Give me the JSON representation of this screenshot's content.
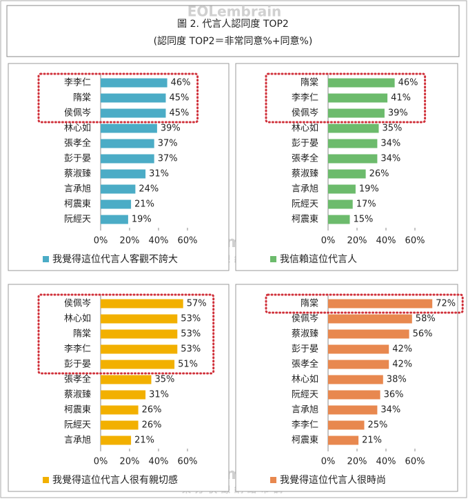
{
  "title": "圖 2. 代言人認同度 TOP2",
  "subtitle": "(認同度 TOP2＝非常同意%+同意%)",
  "watermark": {
    "brand": "EOLembrain",
    "sub": "東方快線網絡市調"
  },
  "chart_data": [
    {
      "type": "bar",
      "orientation": "horizontal",
      "categories": [
        "李李仁",
        "隋棠",
        "侯佩岑",
        "林心如",
        "張孝全",
        "彭于晏",
        "蔡淑臻",
        "言承旭",
        "柯震東",
        "阮經天"
      ],
      "series": [
        {
          "name": "我覺得這位代言人客觀不誇大",
          "color": "#4bacc6",
          "values": [
            46,
            45,
            45,
            39,
            37,
            37,
            31,
            24,
            21,
            19
          ],
          "value_labels": [
            "46%",
            "45%",
            "45%",
            "39%",
            "37%",
            "37%",
            "31%",
            "24%",
            "21%",
            "19%"
          ]
        }
      ],
      "xlim": [
        0,
        60
      ],
      "xticks": [
        {
          "value": 0,
          "label": "0%"
        },
        {
          "value": 20,
          "label": "20%"
        },
        {
          "value": 40,
          "label": "40%"
        },
        {
          "value": 60,
          "label": "60%"
        }
      ],
      "highlight_top": 3,
      "legend": "bottom"
    },
    {
      "type": "bar",
      "orientation": "horizontal",
      "categories": [
        "隋棠",
        "李李仁",
        "侯佩岑",
        "林心如",
        "彭于晏",
        "張孝全",
        "蔡淑臻",
        "言承旭",
        "阮經天",
        "柯震東"
      ],
      "series": [
        {
          "name": "我信賴這位代言人",
          "color": "#6cbb6c",
          "values": [
            46,
            41,
            39,
            35,
            34,
            34,
            26,
            19,
            17,
            15
          ],
          "value_labels": [
            "46%",
            "41%",
            "39%",
            "35%",
            "34%",
            "34%",
            "26%",
            "19%",
            "17%",
            "15%"
          ]
        }
      ],
      "xlim": [
        0,
        60
      ],
      "xticks": [
        {
          "value": 0,
          "label": "0%"
        },
        {
          "value": 20,
          "label": "20%"
        },
        {
          "value": 40,
          "label": "40%"
        },
        {
          "value": 60,
          "label": "60%"
        }
      ],
      "highlight_top": 3,
      "legend": "bottom"
    },
    {
      "type": "bar",
      "orientation": "horizontal",
      "categories": [
        "侯佩岑",
        "林心如",
        "隋棠",
        "李李仁",
        "彭于晏",
        "張孝全",
        "蔡淑臻",
        "柯震東",
        "阮經天",
        "言承旭"
      ],
      "series": [
        {
          "name": "我覺得這位代言人很有親切感",
          "color": "#f2b000",
          "values": [
            57,
            53,
            53,
            53,
            51,
            35,
            31,
            26,
            26,
            21
          ],
          "value_labels": [
            "57%",
            "53%",
            "53%",
            "53%",
            "51%",
            "35%",
            "31%",
            "26%",
            "26%",
            "21%"
          ]
        }
      ],
      "xlim": [
        0,
        60
      ],
      "xticks": [
        {
          "value": 0,
          "label": "0%"
        },
        {
          "value": 20,
          "label": "20%"
        },
        {
          "value": 40,
          "label": "40%"
        },
        {
          "value": 60,
          "label": "60%"
        }
      ],
      "highlight_top": 5,
      "legend": "bottom"
    },
    {
      "type": "bar",
      "orientation": "horizontal",
      "categories": [
        "隋棠",
        "侯佩岑",
        "蔡淑臻",
        "彭于晏",
        "張孝全",
        "林心如",
        "阮經天",
        "言承旭",
        "李李仁",
        "柯震東"
      ],
      "series": [
        {
          "name": "我覺得這位代言人很時尚",
          "color": "#e8884f",
          "values": [
            72,
            58,
            56,
            42,
            42,
            38,
            36,
            34,
            25,
            21
          ],
          "value_labels": [
            "72%",
            "58%",
            "56%",
            "42%",
            "42%",
            "38%",
            "36%",
            "34%",
            "25%",
            "21%"
          ]
        }
      ],
      "xlim": [
        0,
        60
      ],
      "xticks": [
        {
          "value": 0,
          "label": "0%"
        },
        {
          "value": 20,
          "label": "20%"
        },
        {
          "value": 40,
          "label": "40%"
        },
        {
          "value": 60,
          "label": "60%"
        }
      ],
      "highlight_top": 1,
      "legend": "bottom"
    }
  ]
}
